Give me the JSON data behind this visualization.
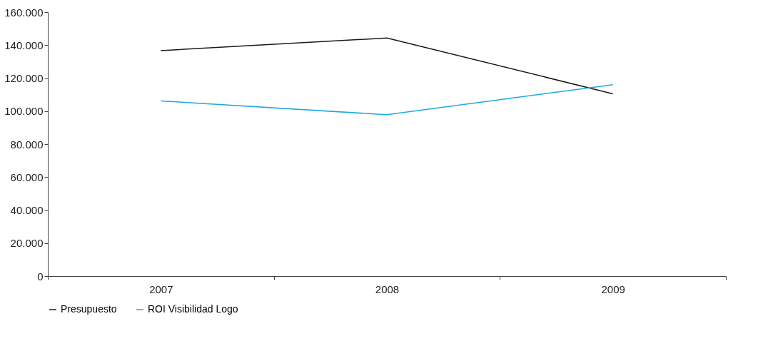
{
  "chart_data": {
    "type": "line",
    "categories": [
      "2007",
      "2008",
      "2009"
    ],
    "series": [
      {
        "name": "Presupuesto",
        "color": "#1a1a1a",
        "values": [
          136700,
          144300,
          110500
        ]
      },
      {
        "name": "ROI Visibilidad Logo",
        "color": "#1ea8e0",
        "values": [
          106200,
          97800,
          116000
        ]
      }
    ],
    "ylim": [
      0,
      160000
    ],
    "yticks": [
      {
        "value": 0,
        "label": "0"
      },
      {
        "value": 20000,
        "label": "20.000"
      },
      {
        "value": 40000,
        "label": "40.000"
      },
      {
        "value": 60000,
        "label": "60.000"
      },
      {
        "value": 80000,
        "label": "80.000"
      },
      {
        "value": 100000,
        "label": "100.000"
      },
      {
        "value": 120000,
        "label": "120.000"
      },
      {
        "value": 140000,
        "label": "140.000"
      },
      {
        "value": 160000,
        "label": "160.000"
      }
    ],
    "grid": false,
    "legend": "bottom left",
    "marker": "none",
    "line_style": "solid"
  }
}
